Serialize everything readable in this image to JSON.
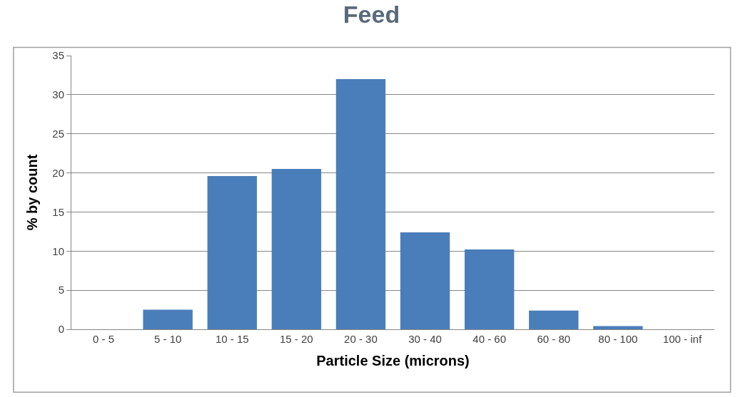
{
  "chart_data": {
    "type": "bar",
    "title": "Feed",
    "xlabel": "Particle Size (microns)",
    "ylabel": "% by count",
    "categories": [
      "0 - 5",
      "5 - 10",
      "10 - 15",
      "15 - 20",
      "20 - 30",
      "30 - 40",
      "40 - 60",
      "60 - 80",
      "80 - 100",
      "100 - inf"
    ],
    "values": [
      0,
      2.5,
      19.6,
      20.5,
      32,
      12.4,
      10.2,
      2.4,
      0.4,
      0
    ],
    "color": "#4a7ebb",
    "ylim": [
      0,
      35
    ],
    "yticks": [
      0,
      5,
      10,
      15,
      20,
      25,
      30,
      35
    ],
    "grid": "y"
  }
}
